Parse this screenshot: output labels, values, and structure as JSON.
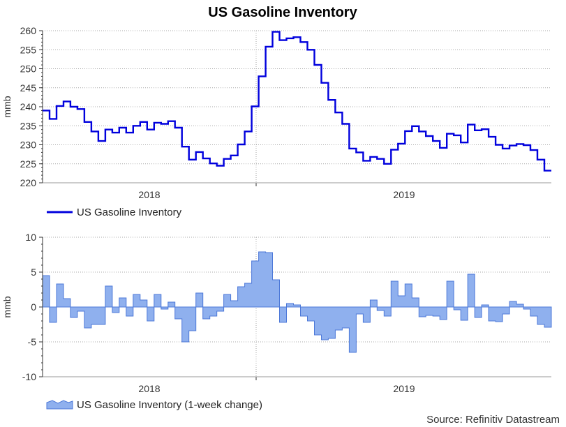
{
  "title": "US Gasoline Inventory",
  "source": "Source: Refinitiv Datastream",
  "colors": {
    "line": "#0000dd",
    "area_fill": "#8fb0ee",
    "area_stroke": "#4c78d8",
    "grid": "#aaaaaa"
  },
  "chart_data": [
    {
      "type": "line",
      "name": "US Gasoline Inventory",
      "ylabel": "mmb",
      "ylim": [
        220,
        260
      ],
      "yticks": [
        220,
        225,
        230,
        235,
        240,
        245,
        250,
        255,
        260
      ],
      "x_period_labels": [
        "2018",
        "2019"
      ],
      "legend": "US Gasoline Inventory",
      "values": [
        239.0,
        236.8,
        240.2,
        241.4,
        240.0,
        239.4,
        236.0,
        233.5,
        231.0,
        234.0,
        233.2,
        234.5,
        233.2,
        235.0,
        236.0,
        234.0,
        235.8,
        235.5,
        236.2,
        234.5,
        229.5,
        226.1,
        228.1,
        226.4,
        225.1,
        224.5,
        226.3,
        227.2,
        230.1,
        233.5,
        240.1,
        248.0,
        255.8,
        259.7,
        257.5,
        258.0,
        258.3,
        257.0,
        255.0,
        251.0,
        246.3,
        241.8,
        238.5,
        235.5,
        229.0,
        228.0,
        225.8,
        226.8,
        226.3,
        225.0,
        228.7,
        230.3,
        233.6,
        234.9,
        233.5,
        232.3,
        231.0,
        229.2,
        232.9,
        232.5,
        230.6,
        235.3,
        233.8,
        234.1,
        232.1,
        230.0,
        229.0,
        229.8,
        230.2,
        229.9,
        228.6,
        226.1,
        223.2
      ]
    },
    {
      "type": "area",
      "name": "US Gasoline Inventory (1-week change)",
      "ylabel": "mmb",
      "ylim": [
        -10,
        10
      ],
      "yticks": [
        -10,
        -5,
        0,
        5,
        10
      ],
      "x_period_labels": [
        "2018",
        "2019"
      ],
      "legend": "US Gasoline Inventory (1-week change)",
      "values": [
        4.5,
        -2.2,
        3.3,
        1.2,
        -1.5,
        -0.6,
        -3.0,
        -2.5,
        -2.5,
        3.0,
        -0.8,
        1.3,
        -1.3,
        1.8,
        1.0,
        -2.0,
        1.8,
        -0.3,
        0.7,
        -1.7,
        -5.0,
        -3.4,
        2.0,
        -1.7,
        -1.3,
        -0.6,
        1.8,
        0.9,
        2.9,
        3.4,
        6.6,
        7.9,
        7.8,
        3.9,
        -2.2,
        0.5,
        0.3,
        -1.3,
        -2.0,
        -4.0,
        -4.7,
        -4.5,
        -3.3,
        -3.0,
        -6.5,
        -1.0,
        -2.2,
        1.0,
        -0.5,
        -1.3,
        3.7,
        1.6,
        3.3,
        1.3,
        -1.4,
        -1.2,
        -1.3,
        -1.8,
        3.7,
        -0.4,
        -1.9,
        4.7,
        -1.5,
        0.3,
        -2.0,
        -2.1,
        -1.0,
        0.8,
        0.4,
        -0.3,
        -1.3,
        -2.5,
        -2.9
      ]
    }
  ]
}
